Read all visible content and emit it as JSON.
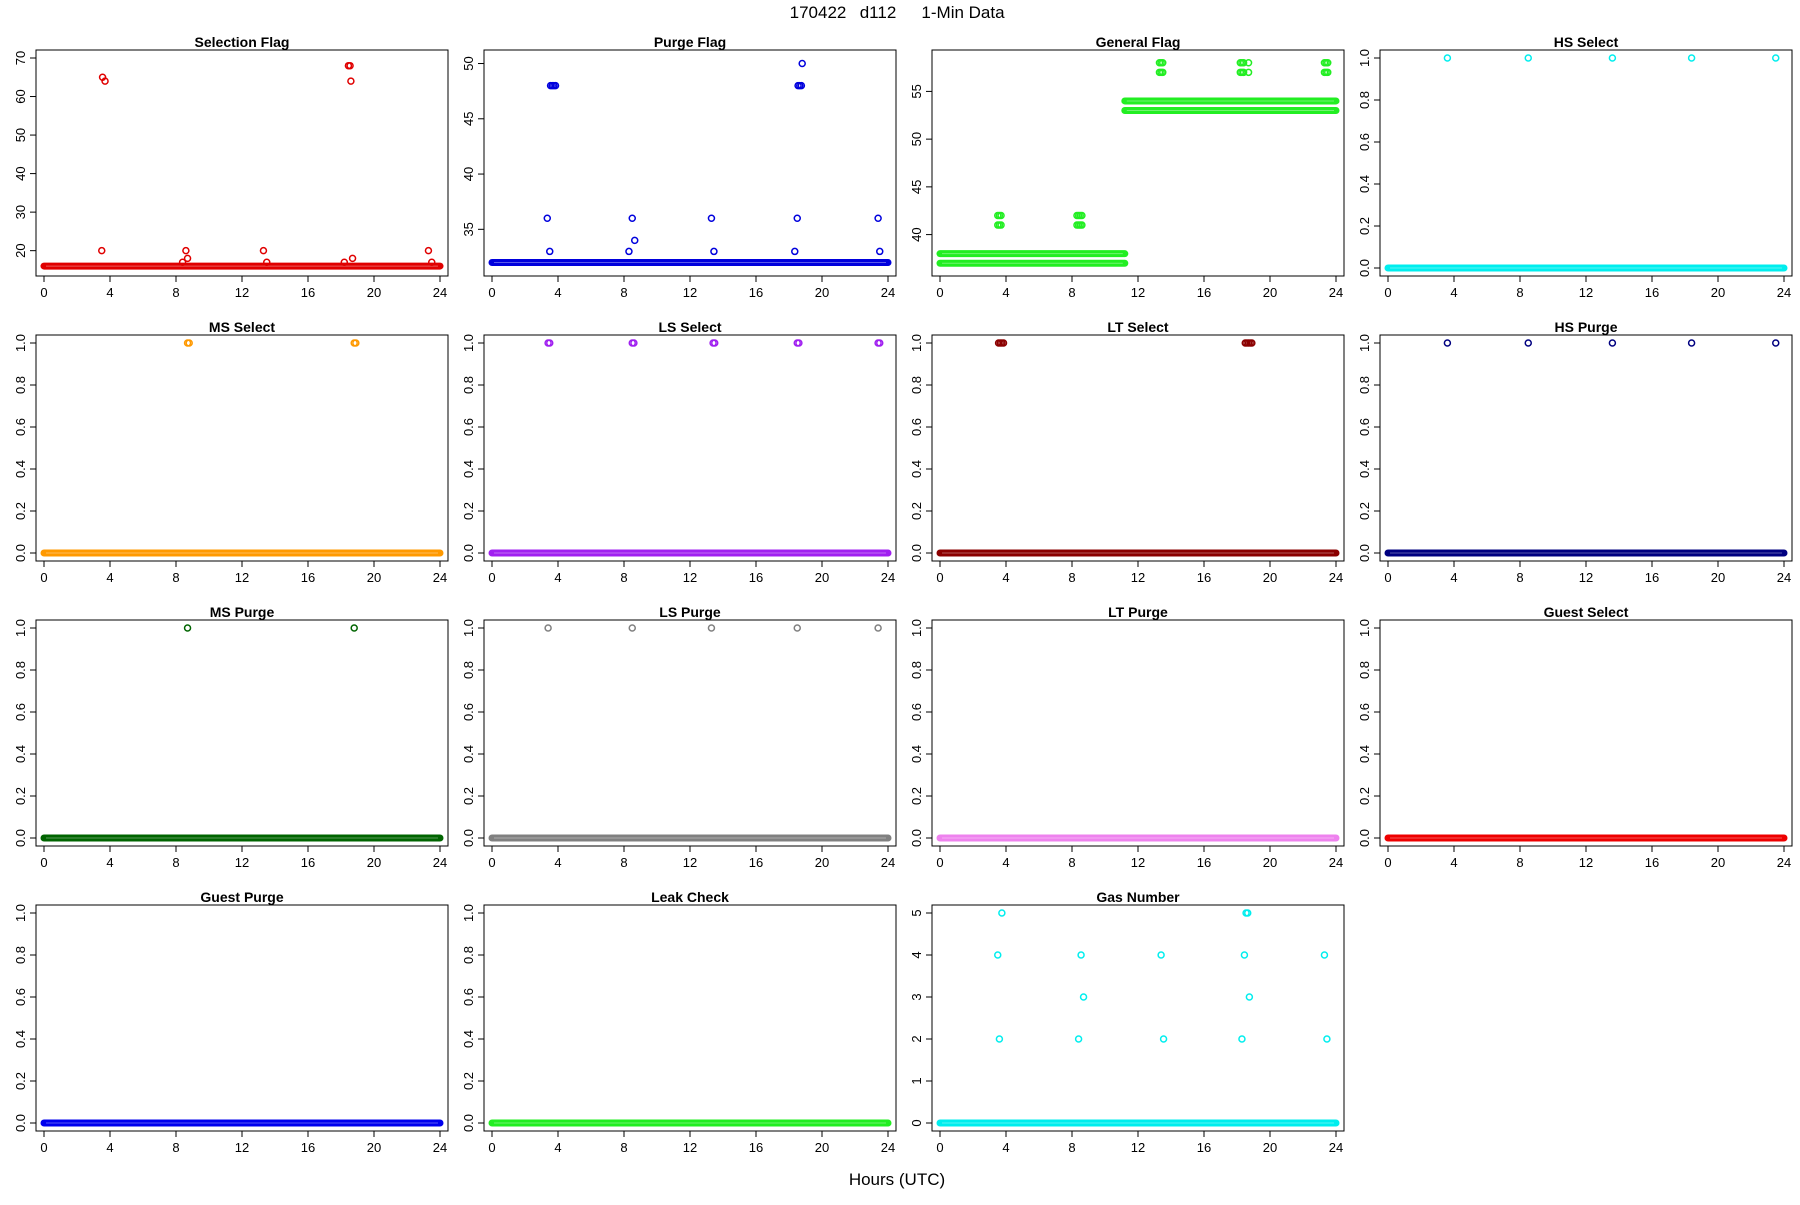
{
  "figure": {
    "title_parts": [
      "170422",
      "d112",
      "1-Min Data"
    ],
    "xlabel": "Hours (UTC)"
  },
  "chart_data": [
    {
      "type": "scatter",
      "title": "Selection Flag",
      "color": "#e00000",
      "xlim": [
        0,
        24
      ],
      "xticks": [
        0,
        4,
        8,
        12,
        16,
        20,
        24
      ],
      "ylim": [
        15.5,
        70
      ],
      "yticks": [
        20,
        30,
        40,
        50,
        60,
        70
      ],
      "baseline": [
        {
          "y": 16,
          "x0": 0,
          "x1": 24
        }
      ],
      "points": [
        [
          3.5,
          20
        ],
        [
          3.55,
          65
        ],
        [
          3.7,
          64
        ],
        [
          8.4,
          17
        ],
        [
          8.6,
          20
        ],
        [
          8.7,
          18
        ],
        [
          13.3,
          20
        ],
        [
          13.5,
          17
        ],
        [
          18.2,
          17
        ],
        [
          18.45,
          68
        ],
        [
          18.55,
          68
        ],
        [
          18.6,
          64
        ],
        [
          18.7,
          18
        ],
        [
          23.3,
          20
        ],
        [
          23.5,
          17
        ]
      ],
      "hollow": true
    },
    {
      "type": "scatter",
      "title": "Purge Flag",
      "color": "#0000dd",
      "xlim": [
        0,
        24
      ],
      "xticks": [
        0,
        4,
        8,
        12,
        16,
        20,
        24
      ],
      "ylim": [
        31.5,
        50.5
      ],
      "yticks": [
        35,
        40,
        45,
        50
      ],
      "baseline": [
        {
          "y": 32,
          "x0": 0,
          "x1": 24
        }
      ],
      "points": [
        [
          3.35,
          36
        ],
        [
          3.5,
          33
        ],
        [
          3.55,
          48
        ],
        [
          3.65,
          48
        ],
        [
          3.75,
          48
        ],
        [
          3.85,
          48
        ],
        [
          8.3,
          33
        ],
        [
          8.5,
          36
        ],
        [
          8.65,
          34
        ],
        [
          13.3,
          36
        ],
        [
          13.45,
          33
        ],
        [
          18.35,
          33
        ],
        [
          18.5,
          36
        ],
        [
          18.55,
          48
        ],
        [
          18.65,
          48
        ],
        [
          18.75,
          48
        ],
        [
          18.8,
          50
        ],
        [
          23.4,
          36
        ],
        [
          23.5,
          33
        ]
      ],
      "hollow": true
    },
    {
      "type": "scatter",
      "title": "General Flag",
      "color": "#22ee22",
      "xlim": [
        0,
        24
      ],
      "xticks": [
        0,
        4,
        8,
        12,
        16,
        20,
        24
      ],
      "ylim": [
        36.5,
        58.5
      ],
      "yticks": [
        40,
        45,
        50,
        55
      ],
      "baseline": [
        {
          "y": 37,
          "x0": 0,
          "x1": 11.2
        },
        {
          "y": 38,
          "x0": 0,
          "x1": 11.2
        },
        {
          "y": 53,
          "x0": 11.2,
          "x1": 24
        },
        {
          "y": 54,
          "x0": 11.2,
          "x1": 24
        }
      ],
      "points": [
        [
          3.5,
          41
        ],
        [
          3.6,
          41
        ],
        [
          3.7,
          41
        ],
        [
          3.5,
          42
        ],
        [
          3.6,
          42
        ],
        [
          3.7,
          42
        ],
        [
          8.3,
          41
        ],
        [
          8.4,
          41
        ],
        [
          8.5,
          41
        ],
        [
          8.6,
          41
        ],
        [
          8.3,
          42
        ],
        [
          8.4,
          42
        ],
        [
          8.5,
          42
        ],
        [
          8.6,
          42
        ],
        [
          13.3,
          57
        ],
        [
          13.4,
          57
        ],
        [
          13.5,
          57
        ],
        [
          13.3,
          58
        ],
        [
          13.4,
          58
        ],
        [
          13.5,
          58
        ],
        [
          18.2,
          57
        ],
        [
          18.3,
          57
        ],
        [
          18.4,
          57
        ],
        [
          18.7,
          57
        ],
        [
          18.2,
          58
        ],
        [
          18.3,
          58
        ],
        [
          18.4,
          58
        ],
        [
          18.7,
          58
        ],
        [
          23.3,
          57
        ],
        [
          23.4,
          57
        ],
        [
          23.5,
          57
        ],
        [
          23.3,
          58
        ],
        [
          23.4,
          58
        ],
        [
          23.5,
          58
        ]
      ],
      "hollow": true
    },
    {
      "type": "scatter",
      "title": "HS Select",
      "color": "#00eeee",
      "xlim": [
        0,
        24
      ],
      "xticks": [
        0,
        4,
        8,
        12,
        16,
        20,
        24
      ],
      "ylim": [
        0,
        1
      ],
      "yticks": [
        0,
        0.2,
        0.4,
        0.6,
        0.8,
        1
      ],
      "baseline": [
        {
          "y": 0,
          "x0": 0,
          "x1": 24
        }
      ],
      "points": [
        [
          3.6,
          1
        ],
        [
          8.5,
          1
        ],
        [
          13.6,
          1
        ],
        [
          18.4,
          1
        ],
        [
          23.5,
          1
        ]
      ],
      "hollow": true
    },
    {
      "type": "scatter",
      "title": "MS Select",
      "color": "#ff9900",
      "xlim": [
        0,
        24
      ],
      "xticks": [
        0,
        4,
        8,
        12,
        16,
        20,
        24
      ],
      "ylim": [
        0,
        1
      ],
      "yticks": [
        0,
        0.2,
        0.4,
        0.6,
        0.8,
        1
      ],
      "baseline": [
        {
          "y": 0,
          "x0": 0,
          "x1": 24
        }
      ],
      "points": [
        [
          8.7,
          1
        ],
        [
          8.8,
          1
        ],
        [
          18.8,
          1
        ],
        [
          18.9,
          1
        ]
      ],
      "hollow": true
    },
    {
      "type": "scatter",
      "title": "LS Select",
      "color": "#a020f0",
      "xlim": [
        0,
        24
      ],
      "xticks": [
        0,
        4,
        8,
        12,
        16,
        20,
        24
      ],
      "ylim": [
        0,
        1
      ],
      "yticks": [
        0,
        0.2,
        0.4,
        0.6,
        0.8,
        1
      ],
      "baseline": [
        {
          "y": 0,
          "x0": 0,
          "x1": 24
        }
      ],
      "points": [
        [
          3.4,
          1
        ],
        [
          3.5,
          1
        ],
        [
          8.5,
          1
        ],
        [
          8.6,
          1
        ],
        [
          13.4,
          1
        ],
        [
          13.5,
          1
        ],
        [
          18.5,
          1
        ],
        [
          18.6,
          1
        ],
        [
          23.4,
          1
        ],
        [
          23.5,
          1
        ]
      ],
      "hollow": true
    },
    {
      "type": "scatter",
      "title": "LT Select",
      "color": "#8b0000",
      "xlim": [
        0,
        24
      ],
      "xticks": [
        0,
        4,
        8,
        12,
        16,
        20,
        24
      ],
      "ylim": [
        0,
        1
      ],
      "yticks": [
        0,
        0.2,
        0.4,
        0.6,
        0.8,
        1
      ],
      "baseline": [
        {
          "y": 0,
          "x0": 0,
          "x1": 24
        }
      ],
      "points": [
        [
          3.55,
          1
        ],
        [
          3.65,
          1
        ],
        [
          3.75,
          1
        ],
        [
          3.85,
          1
        ],
        [
          18.5,
          1
        ],
        [
          18.6,
          1
        ],
        [
          18.7,
          1
        ],
        [
          18.8,
          1
        ],
        [
          18.9,
          1
        ]
      ],
      "hollow": true
    },
    {
      "type": "scatter",
      "title": "HS Purge",
      "color": "#000080",
      "xlim": [
        0,
        24
      ],
      "xticks": [
        0,
        4,
        8,
        12,
        16,
        20,
        24
      ],
      "ylim": [
        0,
        1
      ],
      "yticks": [
        0,
        0.2,
        0.4,
        0.6,
        0.8,
        1
      ],
      "baseline": [
        {
          "y": 0,
          "x0": 0,
          "x1": 24
        }
      ],
      "points": [
        [
          3.6,
          1
        ],
        [
          8.5,
          1
        ],
        [
          13.6,
          1
        ],
        [
          18.4,
          1
        ],
        [
          23.5,
          1
        ]
      ],
      "hollow": true
    },
    {
      "type": "scatter",
      "title": "MS Purge",
      "color": "#006400",
      "xlim": [
        0,
        24
      ],
      "xticks": [
        0,
        4,
        8,
        12,
        16,
        20,
        24
      ],
      "ylim": [
        0,
        1
      ],
      "yticks": [
        0,
        0.2,
        0.4,
        0.6,
        0.8,
        1
      ],
      "baseline": [
        {
          "y": 0,
          "x0": 0,
          "x1": 24
        }
      ],
      "points": [
        [
          8.7,
          1
        ],
        [
          18.8,
          1
        ]
      ],
      "hollow": true
    },
    {
      "type": "scatter",
      "title": "LS Purge",
      "color": "#808080",
      "xlim": [
        0,
        24
      ],
      "xticks": [
        0,
        4,
        8,
        12,
        16,
        20,
        24
      ],
      "ylim": [
        0,
        1
      ],
      "yticks": [
        0,
        0.2,
        0.4,
        0.6,
        0.8,
        1
      ],
      "baseline": [
        {
          "y": 0,
          "x0": 0,
          "x1": 24
        }
      ],
      "points": [
        [
          3.4,
          1
        ],
        [
          8.5,
          1
        ],
        [
          13.3,
          1
        ],
        [
          18.5,
          1
        ],
        [
          23.4,
          1
        ]
      ],
      "hollow": true
    },
    {
      "type": "scatter",
      "title": "LT Purge",
      "color": "#ee82ee",
      "xlim": [
        0,
        24
      ],
      "xticks": [
        0,
        4,
        8,
        12,
        16,
        20,
        24
      ],
      "ylim": [
        0,
        1
      ],
      "yticks": [
        0,
        0.2,
        0.4,
        0.6,
        0.8,
        1
      ],
      "baseline": [
        {
          "y": 0,
          "x0": 0,
          "x1": 24
        }
      ],
      "points": [],
      "hollow": true
    },
    {
      "type": "scatter",
      "title": "Guest Select",
      "color": "#ee0000",
      "xlim": [
        0,
        24
      ],
      "xticks": [
        0,
        4,
        8,
        12,
        16,
        20,
        24
      ],
      "ylim": [
        0,
        1
      ],
      "yticks": [
        0,
        0.2,
        0.4,
        0.6,
        0.8,
        1
      ],
      "baseline": [
        {
          "y": 0,
          "x0": 0,
          "x1": 24
        }
      ],
      "points": [],
      "hollow": true
    },
    {
      "type": "scatter",
      "title": "Guest Purge",
      "color": "#0000ee",
      "xlim": [
        0,
        24
      ],
      "xticks": [
        0,
        4,
        8,
        12,
        16,
        20,
        24
      ],
      "ylim": [
        0,
        1
      ],
      "yticks": [
        0,
        0.2,
        0.4,
        0.6,
        0.8,
        1
      ],
      "baseline": [
        {
          "y": 0,
          "x0": 0,
          "x1": 24
        }
      ],
      "points": [],
      "hollow": true
    },
    {
      "type": "scatter",
      "title": "Leak Check",
      "color": "#22ee22",
      "xlim": [
        0,
        24
      ],
      "xticks": [
        0,
        4,
        8,
        12,
        16,
        20,
        24
      ],
      "ylim": [
        0,
        1
      ],
      "yticks": [
        0,
        0.2,
        0.4,
        0.6,
        0.8,
        1
      ],
      "baseline": [
        {
          "y": 0,
          "x0": 0,
          "x1": 24
        }
      ],
      "points": [],
      "hollow": true
    },
    {
      "type": "scatter",
      "title": "Gas Number",
      "color": "#00eeee",
      "xlim": [
        0,
        24
      ],
      "xticks": [
        0,
        4,
        8,
        12,
        16,
        20,
        24
      ],
      "ylim": [
        0,
        5
      ],
      "yticks": [
        0,
        1,
        2,
        3,
        4,
        5
      ],
      "baseline": [
        {
          "y": 0,
          "x0": 0,
          "x1": 24
        }
      ],
      "points": [
        [
          3.5,
          4
        ],
        [
          3.6,
          2
        ],
        [
          3.75,
          5
        ],
        [
          8.4,
          2
        ],
        [
          8.55,
          4
        ],
        [
          8.7,
          3
        ],
        [
          13.4,
          4
        ],
        [
          13.55,
          2
        ],
        [
          18.3,
          2
        ],
        [
          18.45,
          4
        ],
        [
          18.55,
          5
        ],
        [
          18.65,
          5
        ],
        [
          18.75,
          3
        ],
        [
          23.3,
          4
        ],
        [
          23.45,
          2
        ]
      ],
      "hollow": true
    }
  ]
}
